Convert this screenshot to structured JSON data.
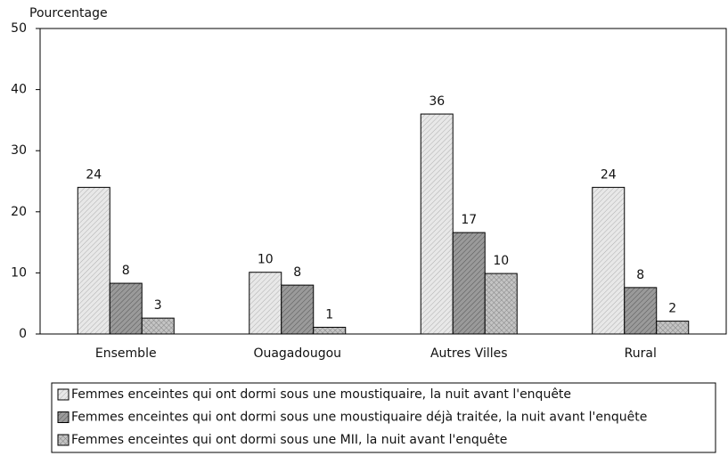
{
  "chart_data": {
    "type": "bar",
    "y_axis_label": "Pourcentage",
    "categories": [
      "Ensemble",
      "Ouagadougou",
      "Autres Villes",
      "Rural"
    ],
    "series": [
      {
        "name": "Femmes enceintes qui ont dormi sous une moustiquaire, la nuit avant l'enquête",
        "color": "#e8e8e8",
        "values": [
          24,
          10.1,
          36,
          24
        ],
        "value_labels": [
          "24",
          "10",
          "36",
          "24"
        ]
      },
      {
        "name": "Femmes enceintes qui ont dormi sous une moustiquaire déjà traitée, la nuit avant l'enquête",
        "color": "#9a9a9a",
        "values": [
          8.3,
          8,
          16.6,
          7.6
        ],
        "value_labels": [
          "8",
          "8",
          "17",
          "8"
        ]
      },
      {
        "name": "Femmes enceintes qui ont dormi sous une MII, la nuit avant l'enquête",
        "color": "#c4c4c4",
        "values": [
          2.6,
          1.1,
          9.9,
          2.1
        ],
        "value_labels": [
          "3",
          "1",
          "10",
          "2"
        ]
      }
    ],
    "ylim": [
      0,
      50
    ],
    "yticks": [
      0,
      10,
      20,
      30,
      40,
      50
    ],
    "grid": false,
    "legend": "bottom"
  }
}
